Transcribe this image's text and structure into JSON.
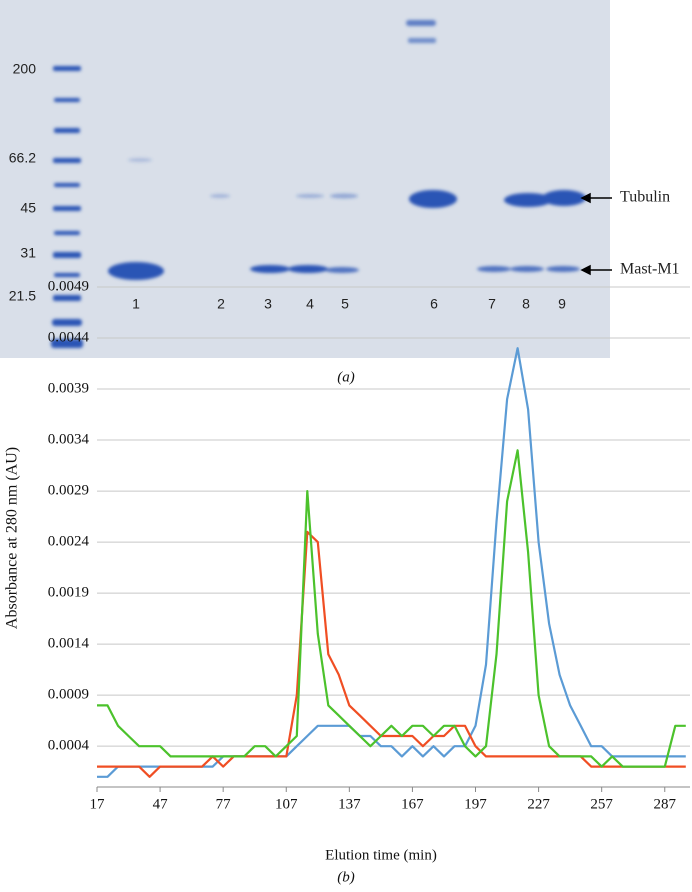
{
  "gel": {
    "marker_labels": [
      "200",
      "66.2",
      "45",
      "31",
      "21.5"
    ],
    "lane_labels": [
      "1",
      "2",
      "3",
      "4",
      "5",
      "6",
      "7",
      "8",
      "9"
    ],
    "band_labels": [
      "Tubulin",
      "Mast-M1"
    ],
    "caption": "(a)"
  },
  "chart_data": {
    "type": "line",
    "caption": "(b)",
    "x_label": "Elution time (min)",
    "y_label": "Absorbance at 280 nm (AU)",
    "x": [
      17,
      22,
      27,
      32,
      37,
      42,
      47,
      52,
      57,
      62,
      67,
      72,
      77,
      82,
      87,
      92,
      97,
      102,
      107,
      112,
      117,
      122,
      127,
      132,
      137,
      142,
      147,
      152,
      157,
      162,
      167,
      172,
      177,
      182,
      187,
      192,
      197,
      202,
      207,
      212,
      217,
      222,
      227,
      232,
      237,
      242,
      247,
      252,
      257,
      262,
      267,
      272,
      277,
      282,
      287,
      292,
      297
    ],
    "series": [
      {
        "color": "#5b9bd5",
        "values": [
          0.0001,
          0.0001,
          0.0002,
          0.0002,
          0.0002,
          0.0002,
          0.0002,
          0.0002,
          0.0002,
          0.0002,
          0.0002,
          0.0002,
          0.0003,
          0.0003,
          0.0003,
          0.0003,
          0.0003,
          0.0003,
          0.0003,
          0.0004,
          0.0005,
          0.0006,
          0.0006,
          0.0006,
          0.0006,
          0.0005,
          0.0005,
          0.0004,
          0.0004,
          0.0003,
          0.0004,
          0.0003,
          0.0004,
          0.0003,
          0.0004,
          0.0004,
          0.0006,
          0.0012,
          0.0026,
          0.0038,
          0.0043,
          0.0037,
          0.0024,
          0.0016,
          0.0011,
          0.0008,
          0.0006,
          0.0004,
          0.0004,
          0.0003,
          0.0003,
          0.0003,
          0.0003,
          0.0003,
          0.0003,
          0.0003,
          0.0003
        ]
      },
      {
        "color": "#f04e23",
        "values": [
          0.0002,
          0.0002,
          0.0002,
          0.0002,
          0.0002,
          0.0001,
          0.0002,
          0.0002,
          0.0002,
          0.0002,
          0.0002,
          0.0003,
          0.0002,
          0.0003,
          0.0003,
          0.0003,
          0.0003,
          0.0003,
          0.0003,
          0.0009,
          0.0025,
          0.0024,
          0.0013,
          0.0011,
          0.0008,
          0.0007,
          0.0006,
          0.0005,
          0.0005,
          0.0005,
          0.0005,
          0.0004,
          0.0005,
          0.0005,
          0.0006,
          0.0006,
          0.0004,
          0.0003,
          0.0003,
          0.0003,
          0.0003,
          0.0003,
          0.0003,
          0.0003,
          0.0003,
          0.0003,
          0.0003,
          0.0002,
          0.0002,
          0.0002,
          0.0002,
          0.0002,
          0.0002,
          0.0002,
          0.0002,
          0.0002,
          0.0002
        ]
      },
      {
        "color": "#4cc22c",
        "values": [
          0.0008,
          0.0008,
          0.0006,
          0.0005,
          0.0004,
          0.0004,
          0.0004,
          0.0003,
          0.0003,
          0.0003,
          0.0003,
          0.0003,
          0.0003,
          0.0003,
          0.0003,
          0.0004,
          0.0004,
          0.0003,
          0.0004,
          0.0005,
          0.0029,
          0.0015,
          0.0008,
          0.0007,
          0.0006,
          0.0005,
          0.0004,
          0.0005,
          0.0006,
          0.0005,
          0.0006,
          0.0006,
          0.0005,
          0.0006,
          0.0006,
          0.0004,
          0.0003,
          0.0004,
          0.0013,
          0.0028,
          0.0033,
          0.0023,
          0.0009,
          0.0004,
          0.0003,
          0.0003,
          0.0003,
          0.0003,
          0.0002,
          0.0003,
          0.0002,
          0.0002,
          0.0002,
          0.0002,
          0.0002,
          0.0006,
          0.0006
        ]
      }
    ],
    "xlim": [
      17,
      299
    ],
    "xticks": [
      17,
      47,
      77,
      107,
      137,
      167,
      197,
      227,
      257,
      287
    ],
    "ylim": [
      0,
      0.0049
    ],
    "yticks": [
      0.0004,
      0.0009,
      0.0014,
      0.0019,
      0.0024,
      0.0029,
      0.0034,
      0.0039,
      0.0044,
      0.0049
    ],
    "grid": true
  }
}
